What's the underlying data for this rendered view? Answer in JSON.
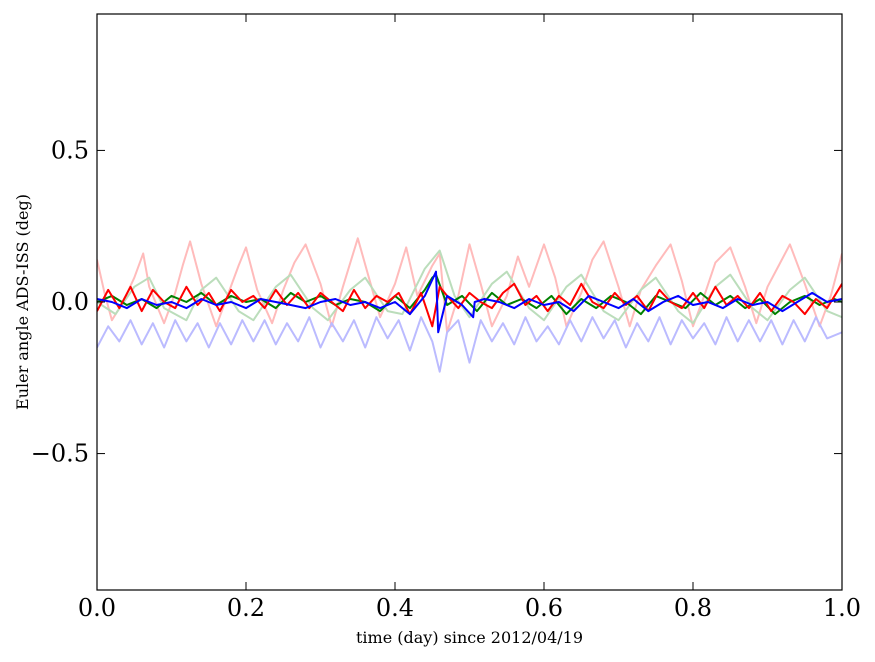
{
  "chart_data": {
    "type": "line",
    "title": "",
    "xlabel": "time (day) since 2012/04/19",
    "ylabel": "Euler angle ADS-ISS (deg)",
    "xlim": [
      0.0,
      1.0
    ],
    "ylim": [
      -0.95,
      0.95
    ],
    "xticks": [
      0.0,
      0.2,
      0.4,
      0.6,
      0.8,
      1.0
    ],
    "xtick_labels": [
      "0.0",
      "0.2",
      "0.4",
      "0.6",
      "0.8",
      "1.0"
    ],
    "yticks": [
      0.5,
      0.0,
      -0.5
    ],
    "ytick_labels": [
      "0.5",
      "0.0",
      "−0.5"
    ],
    "grid": false,
    "legend": "none",
    "series": [
      {
        "color": "#ffbbbb",
        "x": [
          0.0,
          0.01,
          0.02,
          0.035,
          0.05,
          0.062,
          0.07,
          0.09,
          0.105,
          0.115,
          0.125,
          0.14,
          0.16,
          0.175,
          0.19,
          0.2,
          0.215,
          0.235,
          0.25,
          0.265,
          0.28,
          0.3,
          0.315,
          0.33,
          0.35,
          0.365,
          0.38,
          0.4,
          0.415,
          0.43,
          0.45,
          0.46,
          0.47,
          0.485,
          0.5,
          0.515,
          0.53,
          0.55,
          0.565,
          0.58,
          0.6,
          0.615,
          0.63,
          0.65,
          0.665,
          0.68,
          0.7,
          0.715,
          0.73,
          0.75,
          0.77,
          0.785,
          0.8,
          0.815,
          0.83,
          0.85,
          0.87,
          0.885,
          0.9,
          0.915,
          0.93,
          0.95,
          0.97,
          0.985,
          1.0
        ],
        "y": [
          0.14,
          0.03,
          -0.06,
          0.0,
          0.08,
          0.16,
          0.05,
          -0.07,
          0.03,
          0.12,
          0.2,
          0.06,
          -0.08,
          0.02,
          0.12,
          0.18,
          0.04,
          -0.07,
          0.04,
          0.13,
          0.19,
          0.06,
          -0.08,
          0.05,
          0.21,
          0.08,
          -0.05,
          0.06,
          0.18,
          0.02,
          0.12,
          0.16,
          -0.1,
          0.02,
          0.19,
          0.06,
          -0.08,
          0.02,
          0.15,
          0.05,
          0.19,
          0.08,
          -0.08,
          0.03,
          0.14,
          0.2,
          0.05,
          -0.08,
          0.04,
          0.12,
          0.19,
          0.07,
          -0.08,
          0.02,
          0.13,
          0.18,
          0.05,
          -0.07,
          0.05,
          0.12,
          0.19,
          0.06,
          -0.08,
          0.02,
          0.16
        ]
      },
      {
        "color": "#bbddbb",
        "x": [
          0.0,
          0.025,
          0.05,
          0.07,
          0.09,
          0.12,
          0.14,
          0.16,
          0.19,
          0.21,
          0.24,
          0.26,
          0.29,
          0.31,
          0.34,
          0.36,
          0.39,
          0.41,
          0.44,
          0.46,
          0.48,
          0.5,
          0.53,
          0.55,
          0.58,
          0.6,
          0.63,
          0.65,
          0.68,
          0.7,
          0.73,
          0.75,
          0.78,
          0.8,
          0.83,
          0.85,
          0.88,
          0.9,
          0.93,
          0.95,
          0.98,
          1.0
        ],
        "y": [
          0.0,
          -0.04,
          0.05,
          0.08,
          -0.02,
          -0.06,
          0.04,
          0.08,
          -0.03,
          -0.06,
          0.05,
          0.09,
          -0.02,
          -0.06,
          0.04,
          0.08,
          -0.03,
          -0.04,
          0.11,
          0.17,
          0.02,
          -0.05,
          0.06,
          0.1,
          -0.02,
          -0.06,
          0.05,
          0.09,
          -0.03,
          -0.06,
          0.04,
          0.08,
          -0.03,
          -0.07,
          0.05,
          0.09,
          -0.02,
          -0.06,
          0.04,
          0.08,
          -0.03,
          -0.05
        ]
      },
      {
        "color": "#bbbbff",
        "x": [
          0.0,
          0.015,
          0.03,
          0.045,
          0.06,
          0.075,
          0.09,
          0.105,
          0.12,
          0.135,
          0.15,
          0.165,
          0.18,
          0.195,
          0.21,
          0.225,
          0.24,
          0.255,
          0.27,
          0.285,
          0.3,
          0.315,
          0.33,
          0.345,
          0.36,
          0.375,
          0.39,
          0.405,
          0.42,
          0.435,
          0.45,
          0.46,
          0.47,
          0.485,
          0.5,
          0.515,
          0.53,
          0.545,
          0.56,
          0.575,
          0.59,
          0.605,
          0.62,
          0.635,
          0.65,
          0.665,
          0.68,
          0.695,
          0.71,
          0.725,
          0.74,
          0.755,
          0.77,
          0.785,
          0.8,
          0.815,
          0.83,
          0.845,
          0.86,
          0.875,
          0.89,
          0.905,
          0.92,
          0.935,
          0.95,
          0.965,
          0.98,
          1.0
        ],
        "y": [
          -0.15,
          -0.08,
          -0.13,
          -0.06,
          -0.14,
          -0.07,
          -0.15,
          -0.06,
          -0.13,
          -0.07,
          -0.15,
          -0.07,
          -0.14,
          -0.06,
          -0.13,
          -0.06,
          -0.14,
          -0.07,
          -0.13,
          -0.05,
          -0.15,
          -0.07,
          -0.13,
          -0.06,
          -0.15,
          -0.05,
          -0.12,
          -0.06,
          -0.16,
          -0.05,
          -0.13,
          -0.23,
          -0.1,
          -0.06,
          -0.2,
          -0.06,
          -0.13,
          -0.07,
          -0.14,
          -0.05,
          -0.13,
          -0.08,
          -0.14,
          -0.06,
          -0.13,
          -0.05,
          -0.12,
          -0.06,
          -0.15,
          -0.07,
          -0.13,
          -0.05,
          -0.14,
          -0.06,
          -0.12,
          -0.07,
          -0.14,
          -0.05,
          -0.13,
          -0.06,
          -0.13,
          -0.06,
          -0.14,
          -0.06,
          -0.13,
          -0.05,
          -0.12,
          -0.1
        ]
      },
      {
        "color": "#008000",
        "x": [
          0.0,
          0.02,
          0.04,
          0.06,
          0.08,
          0.1,
          0.12,
          0.14,
          0.16,
          0.18,
          0.2,
          0.22,
          0.24,
          0.26,
          0.28,
          0.3,
          0.32,
          0.34,
          0.36,
          0.38,
          0.4,
          0.42,
          0.44,
          0.45,
          0.455,
          0.47,
          0.49,
          0.51,
          0.53,
          0.55,
          0.57,
          0.59,
          0.61,
          0.63,
          0.65,
          0.67,
          0.69,
          0.71,
          0.73,
          0.75,
          0.77,
          0.79,
          0.81,
          0.83,
          0.85,
          0.87,
          0.89,
          0.91,
          0.93,
          0.95,
          0.97,
          0.99,
          1.0
        ],
        "y": [
          0.0,
          0.02,
          -0.01,
          0.01,
          -0.02,
          0.02,
          0.0,
          0.03,
          -0.01,
          0.02,
          0.0,
          0.01,
          -0.02,
          0.03,
          0.0,
          0.02,
          -0.01,
          0.01,
          0.0,
          -0.03,
          0.02,
          -0.02,
          0.04,
          0.08,
          0.09,
          -0.01,
          0.02,
          -0.03,
          0.03,
          -0.01,
          0.01,
          -0.02,
          0.02,
          -0.04,
          0.01,
          -0.02,
          0.02,
          0.0,
          -0.04,
          0.02,
          0.0,
          -0.02,
          0.03,
          -0.01,
          0.02,
          -0.02,
          0.01,
          -0.04,
          0.0,
          0.02,
          -0.01,
          0.01,
          0.0
        ]
      },
      {
        "color": "#ff0000",
        "x": [
          0.0,
          0.015,
          0.03,
          0.045,
          0.06,
          0.075,
          0.09,
          0.105,
          0.12,
          0.135,
          0.15,
          0.165,
          0.18,
          0.195,
          0.21,
          0.225,
          0.24,
          0.255,
          0.27,
          0.285,
          0.3,
          0.315,
          0.33,
          0.345,
          0.36,
          0.375,
          0.39,
          0.405,
          0.42,
          0.435,
          0.45,
          0.46,
          0.47,
          0.485,
          0.5,
          0.515,
          0.53,
          0.545,
          0.56,
          0.575,
          0.59,
          0.605,
          0.62,
          0.635,
          0.65,
          0.665,
          0.68,
          0.695,
          0.71,
          0.725,
          0.74,
          0.755,
          0.77,
          0.785,
          0.8,
          0.815,
          0.83,
          0.845,
          0.86,
          0.875,
          0.89,
          0.905,
          0.92,
          0.935,
          0.95,
          0.965,
          0.98,
          1.0
        ],
        "y": [
          -0.03,
          0.04,
          -0.02,
          0.05,
          -0.03,
          0.04,
          0.0,
          -0.02,
          0.05,
          -0.01,
          0.03,
          -0.03,
          0.04,
          0.0,
          0.02,
          -0.02,
          0.04,
          -0.01,
          0.03,
          -0.02,
          0.03,
          0.0,
          -0.03,
          0.04,
          -0.02,
          0.02,
          0.0,
          0.03,
          -0.04,
          0.03,
          -0.08,
          0.05,
          0.02,
          -0.02,
          0.03,
          0.0,
          -0.02,
          0.03,
          0.06,
          -0.01,
          0.02,
          -0.03,
          0.02,
          -0.01,
          0.06,
          0.0,
          -0.02,
          0.03,
          -0.01,
          0.02,
          -0.03,
          0.04,
          0.0,
          -0.02,
          0.03,
          -0.02,
          0.05,
          -0.01,
          0.02,
          -0.02,
          0.03,
          -0.03,
          0.02,
          0.0,
          -0.04,
          0.01,
          -0.02,
          0.06
        ]
      },
      {
        "color": "#0000ff",
        "x": [
          0.0,
          0.02,
          0.04,
          0.06,
          0.08,
          0.1,
          0.12,
          0.14,
          0.16,
          0.18,
          0.2,
          0.22,
          0.24,
          0.26,
          0.28,
          0.3,
          0.32,
          0.34,
          0.36,
          0.38,
          0.4,
          0.42,
          0.44,
          0.455,
          0.458,
          0.47,
          0.49,
          0.505,
          0.507,
          0.52,
          0.54,
          0.56,
          0.58,
          0.6,
          0.62,
          0.64,
          0.66,
          0.68,
          0.7,
          0.72,
          0.74,
          0.76,
          0.78,
          0.8,
          0.82,
          0.84,
          0.86,
          0.88,
          0.9,
          0.92,
          0.94,
          0.96,
          0.98,
          1.0
        ],
        "y": [
          0.01,
          0.0,
          -0.02,
          0.01,
          -0.01,
          0.0,
          -0.02,
          0.01,
          -0.01,
          0.0,
          -0.02,
          0.01,
          0.0,
          -0.01,
          -0.02,
          0.0,
          0.01,
          -0.01,
          0.0,
          -0.02,
          0.0,
          -0.04,
          0.02,
          0.1,
          -0.1,
          0.02,
          -0.01,
          -0.05,
          0.0,
          0.01,
          0.0,
          -0.02,
          0.01,
          -0.01,
          0.0,
          -0.03,
          0.02,
          0.0,
          -0.02,
          0.01,
          -0.03,
          0.0,
          0.02,
          -0.01,
          0.0,
          -0.02,
          0.01,
          -0.01,
          0.0,
          -0.03,
          0.0,
          0.03,
          0.0,
          0.01
        ]
      }
    ]
  }
}
